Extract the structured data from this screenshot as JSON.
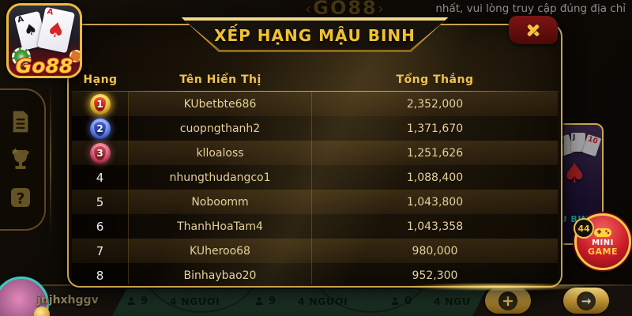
{
  "colors": {
    "gold_accent": "#f2c94c",
    "title_gold": "#f2c131",
    "modal_border": "#caa14e",
    "row_text": "#e3d09c",
    "badge_gold": "#f5c93f",
    "badge_blue": "#5a79d8",
    "badge_red": "#c4475a",
    "felt_green": "#24402f",
    "close_red": "#7d1414"
  },
  "top_bar": {
    "emblem": "GO88",
    "notice": "nhất, vui lòng truy cập đúng địa chỉ"
  },
  "logo": {
    "brand": "Go88",
    "card_left_rank": "A",
    "card_left_suit": "♠",
    "card_right_rank": "A",
    "card_right_suit": "♠"
  },
  "sidebar": {
    "items": [
      {
        "icon": "document-icon"
      },
      {
        "icon": "trophy-icon"
      },
      {
        "icon": "help-icon"
      }
    ]
  },
  "modal": {
    "title": "XẾP HẠNG MẬU BINH",
    "table": {
      "columns": [
        "Hạng",
        "Tên Hiển Thị",
        "Tổng Thắng"
      ],
      "rows": [
        {
          "rank": 1,
          "name": "KUbetbte686",
          "total": "2,352,000"
        },
        {
          "rank": 2,
          "name": "cuopngthanh2",
          "total": "1,371,670"
        },
        {
          "rank": 3,
          "name": "klloaloss",
          "total": "1,251,626"
        },
        {
          "rank": 4,
          "name": "nhungthudangco1",
          "total": "1,088,400"
        },
        {
          "rank": 5,
          "name": "Noboomm",
          "total": "1,043,800"
        },
        {
          "rank": 6,
          "name": "ThanhHoaTam4",
          "total": "1,043,358"
        },
        {
          "rank": 7,
          "name": "KUheroo68",
          "total": "980,000"
        },
        {
          "rank": 8,
          "name": "Binhaybao20",
          "total": "952,300"
        }
      ]
    }
  },
  "right_panel": {
    "game_tile": {
      "cards": [
        "Q",
        "J",
        "10"
      ],
      "label": "U BINH",
      "suit": "♠"
    },
    "mini_game": {
      "badge": "44",
      "line1": "MINI",
      "line2": "GAME"
    }
  },
  "bottom_bar": {
    "player_name": "jnjhxhggv",
    "tables": [
      {
        "count": "9",
        "label": "4 NGƯỜI"
      },
      {
        "count": "9",
        "label": "4 NGƯỜI"
      },
      {
        "count": "0",
        "label": "4 NGƯ"
      }
    ]
  }
}
